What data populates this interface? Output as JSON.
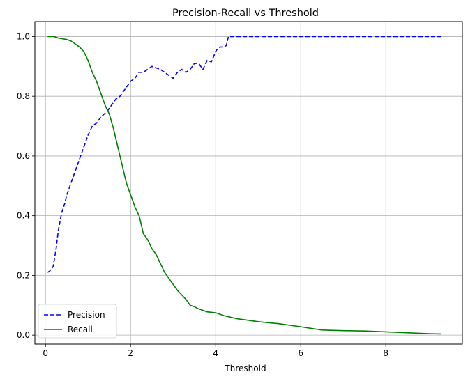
{
  "chart_data": {
    "type": "line",
    "title": "Precision-Recall vs Threshold",
    "xlabel": "Threshold",
    "ylabel": "",
    "xlim": [
      -0.25,
      9.8
    ],
    "ylim": [
      -0.03,
      1.05
    ],
    "xticks": [
      0,
      2,
      4,
      6,
      8
    ],
    "xtick_labels": [
      "0",
      "2",
      "4",
      "6",
      "8"
    ],
    "yticks": [
      0.0,
      0.2,
      0.4,
      0.6,
      0.8,
      1.0
    ],
    "ytick_labels": [
      "0.0",
      "0.2",
      "0.4",
      "0.6",
      "0.8",
      "1.0"
    ],
    "grid": true,
    "legend_position": "bottom-left",
    "series": [
      {
        "name": "Precision",
        "color": "#0000ff",
        "style": "dashed",
        "points": [
          [
            0.05,
            0.21
          ],
          [
            0.1,
            0.215
          ],
          [
            0.18,
            0.23
          ],
          [
            0.25,
            0.29
          ],
          [
            0.3,
            0.35
          ],
          [
            0.38,
            0.41
          ],
          [
            0.45,
            0.44
          ],
          [
            0.5,
            0.47
          ],
          [
            0.6,
            0.51
          ],
          [
            0.7,
            0.55
          ],
          [
            0.8,
            0.59
          ],
          [
            0.9,
            0.63
          ],
          [
            1.0,
            0.67
          ],
          [
            1.1,
            0.7
          ],
          [
            1.2,
            0.71
          ],
          [
            1.3,
            0.73
          ],
          [
            1.45,
            0.75
          ],
          [
            1.55,
            0.77
          ],
          [
            1.65,
            0.79
          ],
          [
            1.75,
            0.8
          ],
          [
            1.9,
            0.83
          ],
          [
            2.0,
            0.85
          ],
          [
            2.1,
            0.86
          ],
          [
            2.2,
            0.88
          ],
          [
            2.3,
            0.88
          ],
          [
            2.4,
            0.89
          ],
          [
            2.5,
            0.9
          ],
          [
            2.6,
            0.895
          ],
          [
            2.7,
            0.89
          ],
          [
            2.8,
            0.88
          ],
          [
            2.9,
            0.87
          ],
          [
            3.0,
            0.86
          ],
          [
            3.1,
            0.88
          ],
          [
            3.2,
            0.89
          ],
          [
            3.3,
            0.88
          ],
          [
            3.4,
            0.89
          ],
          [
            3.5,
            0.91
          ],
          [
            3.6,
            0.91
          ],
          [
            3.7,
            0.89
          ],
          [
            3.8,
            0.92
          ],
          [
            3.9,
            0.915
          ],
          [
            4.0,
            0.95
          ],
          [
            4.05,
            0.96
          ],
          [
            4.1,
            0.965
          ],
          [
            4.2,
            0.965
          ],
          [
            4.25,
            0.97
          ],
          [
            4.3,
            1.0
          ],
          [
            5.0,
            1.0
          ],
          [
            6.0,
            1.0
          ],
          [
            7.0,
            1.0
          ],
          [
            8.0,
            1.0
          ],
          [
            9.3,
            1.0
          ]
        ]
      },
      {
        "name": "Recall",
        "color": "#008000",
        "style": "solid",
        "points": [
          [
            0.05,
            1.0
          ],
          [
            0.2,
            1.0
          ],
          [
            0.3,
            0.995
          ],
          [
            0.5,
            0.99
          ],
          [
            0.6,
            0.985
          ],
          [
            0.7,
            0.975
          ],
          [
            0.8,
            0.965
          ],
          [
            0.9,
            0.95
          ],
          [
            1.0,
            0.92
          ],
          [
            1.1,
            0.88
          ],
          [
            1.2,
            0.85
          ],
          [
            1.3,
            0.81
          ],
          [
            1.4,
            0.77
          ],
          [
            1.5,
            0.74
          ],
          [
            1.6,
            0.69
          ],
          [
            1.7,
            0.63
          ],
          [
            1.8,
            0.57
          ],
          [
            1.9,
            0.51
          ],
          [
            2.0,
            0.47
          ],
          [
            2.1,
            0.43
          ],
          [
            2.2,
            0.4
          ],
          [
            2.3,
            0.34
          ],
          [
            2.4,
            0.32
          ],
          [
            2.5,
            0.29
          ],
          [
            2.6,
            0.27
          ],
          [
            2.7,
            0.24
          ],
          [
            2.8,
            0.21
          ],
          [
            2.9,
            0.19
          ],
          [
            3.0,
            0.17
          ],
          [
            3.1,
            0.15
          ],
          [
            3.2,
            0.135
          ],
          [
            3.3,
            0.12
          ],
          [
            3.4,
            0.1
          ],
          [
            3.5,
            0.095
          ],
          [
            3.6,
            0.088
          ],
          [
            3.7,
            0.083
          ],
          [
            3.8,
            0.078
          ],
          [
            4.0,
            0.075
          ],
          [
            4.2,
            0.065
          ],
          [
            4.5,
            0.055
          ],
          [
            5.0,
            0.045
          ],
          [
            5.5,
            0.038
          ],
          [
            6.0,
            0.028
          ],
          [
            6.5,
            0.017
          ],
          [
            7.0,
            0.015
          ],
          [
            7.5,
            0.014
          ],
          [
            8.0,
            0.011
          ],
          [
            8.5,
            0.008
          ],
          [
            9.0,
            0.005
          ],
          [
            9.3,
            0.004
          ]
        ]
      }
    ]
  }
}
